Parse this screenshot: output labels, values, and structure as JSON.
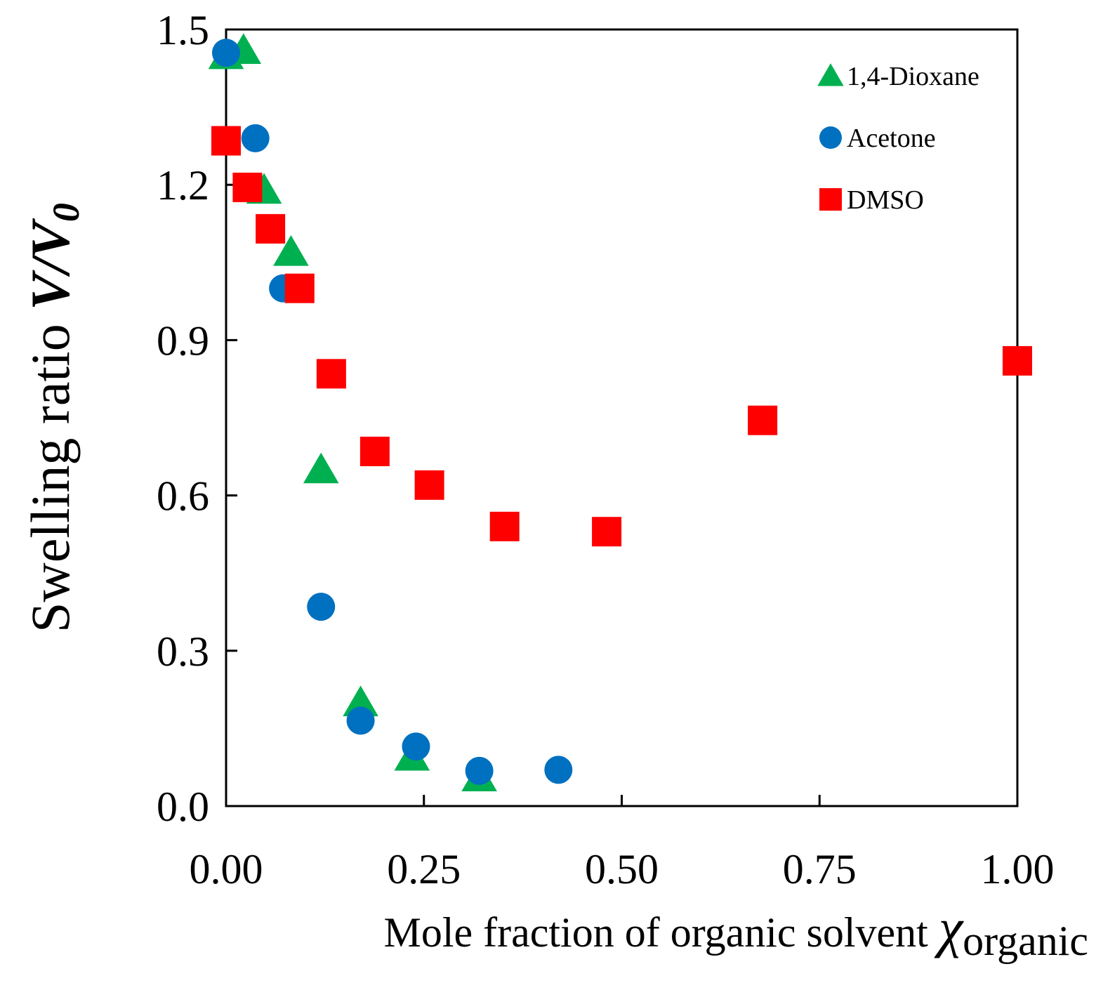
{
  "chart_data": {
    "type": "scatter",
    "title": "",
    "xlabel": {
      "main": "Mole fraction of organic solvent ",
      "symbol": "χ",
      "subscript": "organic"
    },
    "ylabel": {
      "main": "Swelling ratio ",
      "symbol": "V/V",
      "subscript": "0"
    },
    "xlim": [
      0,
      1
    ],
    "ylim": [
      0,
      1.5
    ],
    "xticks": [
      "0.00",
      "0.25",
      "0.50",
      "0.75",
      "1.00"
    ],
    "yticks": [
      "0.0",
      "0.3",
      "0.6",
      "0.9",
      "1.2",
      "1.5"
    ],
    "grid": false,
    "legend_position": "top-right",
    "series": [
      {
        "name": "1,4-Dioxane",
        "marker": "triangle",
        "color": "#00b050",
        "points": [
          {
            "x": 0.0,
            "y": 1.45
          },
          {
            "x": 0.022,
            "y": 1.46
          },
          {
            "x": 0.048,
            "y": 1.19
          },
          {
            "x": 0.082,
            "y": 1.07
          },
          {
            "x": 0.12,
            "y": 0.65
          },
          {
            "x": 0.17,
            "y": 0.2
          },
          {
            "x": 0.235,
            "y": 0.095
          },
          {
            "x": 0.32,
            "y": 0.055
          }
        ]
      },
      {
        "name": "Acetone",
        "marker": "circle",
        "color": "#0070c0",
        "points": [
          {
            "x": 0.0,
            "y": 1.455
          },
          {
            "x": 0.037,
            "y": 1.29
          },
          {
            "x": 0.072,
            "y": 1.0
          },
          {
            "x": 0.12,
            "y": 0.385
          },
          {
            "x": 0.17,
            "y": 0.165
          },
          {
            "x": 0.24,
            "y": 0.115
          },
          {
            "x": 0.32,
            "y": 0.068
          },
          {
            "x": 0.42,
            "y": 0.07
          }
        ]
      },
      {
        "name": "DMSO",
        "marker": "square",
        "color": "#ff0000",
        "points": [
          {
            "x": 0.0,
            "y": 1.285
          },
          {
            "x": 0.027,
            "y": 1.195
          },
          {
            "x": 0.056,
            "y": 1.115
          },
          {
            "x": 0.093,
            "y": 1.0
          },
          {
            "x": 0.133,
            "y": 0.835
          },
          {
            "x": 0.188,
            "y": 0.685
          },
          {
            "x": 0.257,
            "y": 0.62
          },
          {
            "x": 0.352,
            "y": 0.54
          },
          {
            "x": 0.481,
            "y": 0.53
          },
          {
            "x": 0.678,
            "y": 0.745
          },
          {
            "x": 1.0,
            "y": 0.86
          }
        ]
      }
    ]
  }
}
